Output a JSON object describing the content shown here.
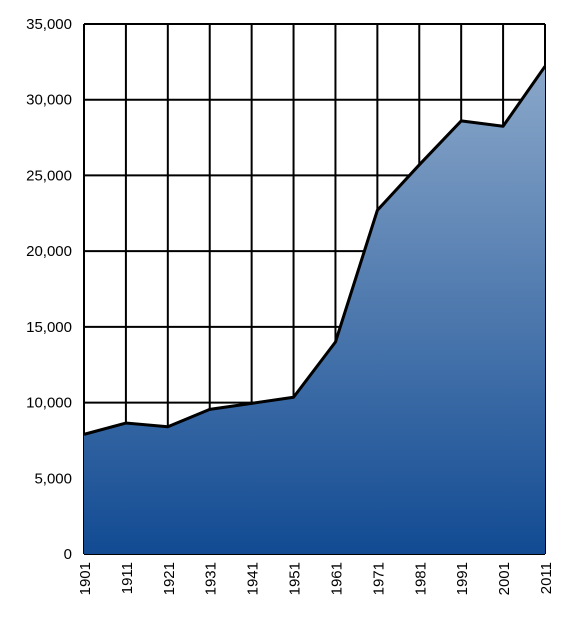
{
  "chart_data": {
    "type": "area",
    "title": "",
    "xlabel": "",
    "ylabel": "",
    "x": [
      "1901",
      "1911",
      "1921",
      "1931",
      "1941",
      "1951",
      "1961",
      "1971",
      "1981",
      "1991",
      "2001",
      "2011"
    ],
    "series": [
      {
        "values": [
          7900,
          8650,
          8400,
          9550,
          9950,
          10350,
          14000,
          22700,
          25700,
          28600,
          28250,
          32200
        ]
      }
    ],
    "ylim": [
      0,
      35000
    ],
    "yticks": [
      0,
      5000,
      10000,
      15000,
      20000,
      25000,
      30000,
      35000
    ],
    "ytick_labels": [
      "0",
      "5,000",
      "10,000",
      "15,000",
      "20,000",
      "25,000",
      "30,000",
      "35,000"
    ],
    "grid": true,
    "legend": "none",
    "colors": {
      "fill_top": "#8aa7c9",
      "fill_bottom": "#124b93",
      "line": "#000000",
      "grid": "#000000"
    }
  }
}
